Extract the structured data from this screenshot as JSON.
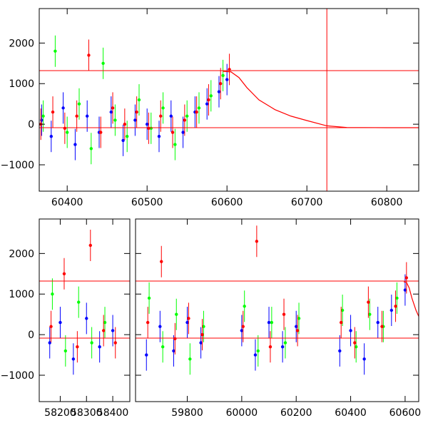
{
  "chart_data": [
    {
      "type": "scatter",
      "title": "",
      "xlabel": "",
      "ylabel": "",
      "xlim": [
        60365,
        60840
      ],
      "ylim": [
        -1650,
        2850
      ],
      "x_ticks": [
        60400,
        60500,
        60600,
        60700,
        60800
      ],
      "y_ticks": [
        -1000,
        0,
        1000,
        2000
      ],
      "grid": false,
      "legend": "none",
      "series": [
        {
          "color": "#0000ff",
          "x": [
            60368,
            60380,
            60395,
            60410,
            60425,
            60440,
            60455,
            60470,
            60485,
            60500,
            60515,
            60530,
            60545,
            60560,
            60575,
            60590,
            60600
          ],
          "y": [
            100,
            -300,
            400,
            -500,
            200,
            -200,
            300,
            -400,
            100,
            0,
            -300,
            200,
            -200,
            300,
            500,
            800,
            1100
          ]
        },
        {
          "color": "#00ff00",
          "x": [
            60370,
            60385,
            60400,
            60415,
            60430,
            60445,
            60460,
            60475,
            60490,
            60505,
            60520,
            60535,
            60550,
            60565,
            60580,
            60595
          ],
          "y": [
            200,
            1800,
            -200,
            500,
            -600,
            1500,
            100,
            -300,
            600,
            -100,
            400,
            -500,
            200,
            400,
            700,
            1200
          ]
        },
        {
          "color": "#ff0000",
          "x": [
            60367,
            60382,
            60397,
            60412,
            60427,
            60442,
            60457,
            60472,
            60487,
            60502,
            60517,
            60532,
            60547,
            60562,
            60577,
            60592,
            60603
          ],
          "y": [
            0,
            300,
            -100,
            200,
            1700,
            -200,
            400,
            0,
            300,
            -100,
            200,
            -200,
            100,
            300,
            600,
            1000,
            1350
          ]
        }
      ],
      "model_curve": {
        "color": "#ff0000",
        "x": [
          60595,
          60605,
          60615,
          60625,
          60640,
          60660,
          60680,
          60700,
          60725,
          60750,
          60800,
          60840
        ],
        "y": [
          1300,
          1290,
          1150,
          900,
          600,
          360,
          200,
          90,
          -40,
          -80,
          -85,
          -85
        ]
      },
      "reference_lines": {
        "color": "#ff0000",
        "horizontal": [
          1320,
          -85
        ],
        "vertical": [
          60725
        ]
      }
    },
    {
      "type": "scatter",
      "title": "",
      "xlabel": "",
      "ylabel": "",
      "xlim": [
        58120,
        60650
      ],
      "ylim": [
        -1650,
        2850
      ],
      "broken_axis": [
        [
          58120,
          58465
        ],
        [
          59610,
          60650
        ]
      ],
      "x_ticks": [
        58200,
        58300,
        58400,
        59800,
        60000,
        60200,
        60400,
        60600
      ],
      "y_ticks": [
        -1000,
        0,
        1000,
        2000
      ],
      "grid": false,
      "legend": "none",
      "series": [
        {
          "color": "#0000ff",
          "x": [
            58160,
            58200,
            58250,
            58300,
            58350,
            58400,
            59650,
            59700,
            59750,
            59800,
            59850,
            60000,
            60050,
            60100,
            60150,
            60200,
            60360,
            60400,
            60450,
            60500,
            60550,
            60600
          ],
          "y": [
            -200,
            300,
            -600,
            400,
            -300,
            100,
            -500,
            200,
            -400,
            300,
            -200,
            100,
            -500,
            300,
            -300,
            200,
            -400,
            100,
            -600,
            300,
            600,
            1100
          ]
        },
        {
          "color": "#00ff00",
          "x": [
            58170,
            58220,
            58270,
            58320,
            58370,
            59660,
            59710,
            59760,
            59810,
            59860,
            60010,
            60060,
            60110,
            60160,
            60210,
            60370,
            60420,
            60470,
            60520,
            60570
          ],
          "y": [
            1000,
            -400,
            800,
            -200,
            300,
            900,
            -300,
            500,
            -600,
            200,
            700,
            -400,
            300,
            -200,
            400,
            600,
            -300,
            500,
            200,
            900
          ]
        },
        {
          "color": "#ff0000",
          "x": [
            58165,
            58215,
            58265,
            58315,
            58365,
            58410,
            59655,
            59705,
            59755,
            59805,
            59855,
            60005,
            60055,
            60105,
            60155,
            60205,
            60365,
            60415,
            60465,
            60515,
            60565,
            60605
          ],
          "y": [
            200,
            1500,
            -300,
            2200,
            100,
            -200,
            300,
            1800,
            -100,
            400,
            0,
            200,
            2300,
            -300,
            500,
            100,
            300,
            -200,
            800,
            200,
            700,
            1400
          ]
        }
      ],
      "model_curve": {
        "color": "#ff0000",
        "x": [
          60595,
          60605,
          60615,
          60625,
          60640,
          60650
        ],
        "y": [
          1300,
          1290,
          1150,
          900,
          600,
          450
        ]
      },
      "reference_lines": {
        "color": "#ff0000",
        "horizontal": [
          1320,
          -85
        ]
      }
    }
  ]
}
